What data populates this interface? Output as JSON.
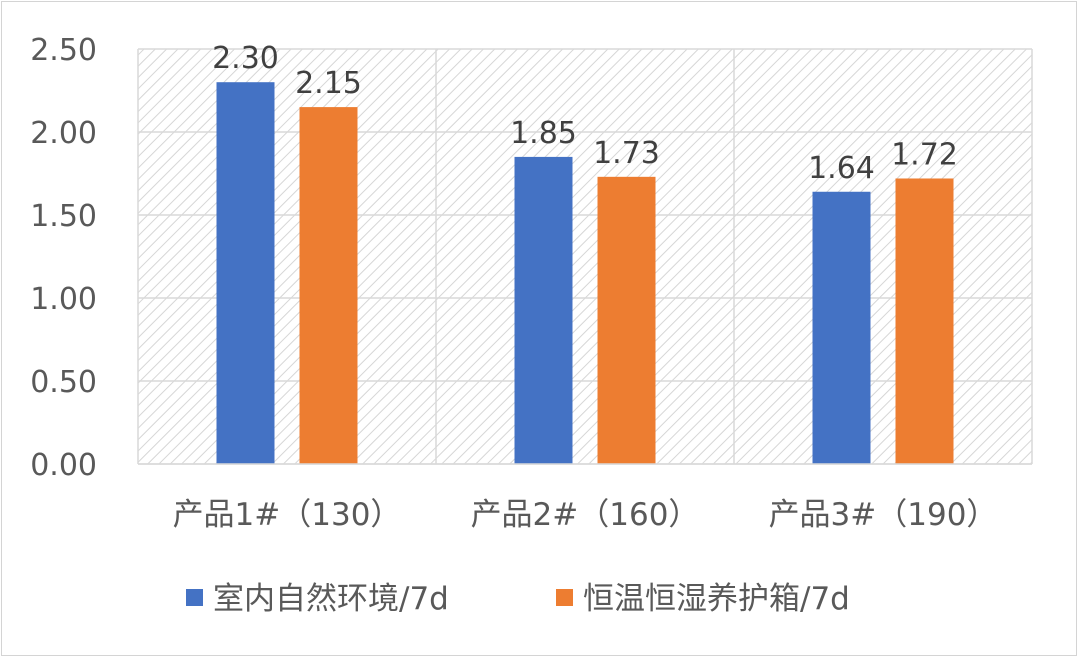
{
  "chart_data": {
    "type": "bar",
    "categories": [
      "产品1#（130）",
      "产品2#（160）",
      "产品3#（190）"
    ],
    "series": [
      {
        "name": "室内自然环境/7d",
        "values": [
          2.3,
          1.85,
          1.64
        ],
        "labels": [
          "2.30",
          "1.85",
          "1.64"
        ],
        "color": "#4472C4"
      },
      {
        "name": "恒温恒湿养护箱/7d",
        "values": [
          2.15,
          1.73,
          1.72
        ],
        "labels": [
          "2.15",
          "1.73",
          "1.72"
        ],
        "color": "#ED7D31"
      }
    ],
    "ylim": [
      0,
      2.5
    ],
    "yticks": [
      "0.00",
      "0.50",
      "1.00",
      "1.50",
      "2.00",
      "2.50"
    ],
    "title": "",
    "xlabel": "",
    "ylabel": "",
    "grid": true,
    "plot_background": "diagonal-hatch",
    "legend_position": "bottom"
  }
}
